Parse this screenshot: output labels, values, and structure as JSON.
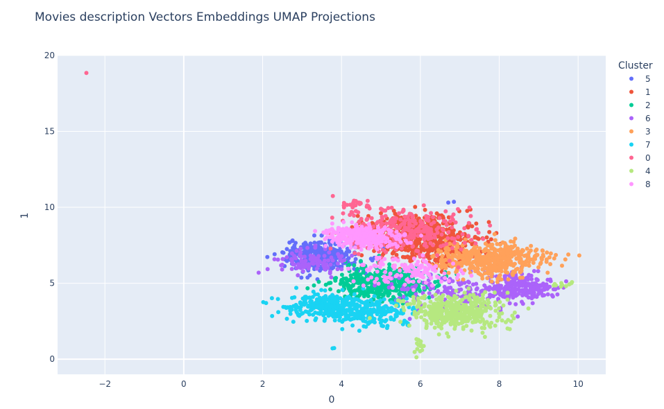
{
  "chart_data": {
    "type": "scatter",
    "title": "Movies description Vectors Embeddings UMAP Projections",
    "xlabel": "0",
    "ylabel": "1",
    "xlim": [
      -3.2,
      10.7
    ],
    "ylim": [
      -1.0,
      20.0
    ],
    "x_ticks": [
      -2,
      0,
      2,
      4,
      6,
      8,
      10
    ],
    "y_ticks": [
      0,
      5,
      10,
      15,
      20
    ],
    "grid": true,
    "legend_title": "Cluster",
    "legend_position": "right",
    "series": [
      {
        "name": "5",
        "color": "#636efa",
        "clusters": [
          {
            "cx": 3.5,
            "cy": 6.8,
            "sx": 0.45,
            "sy": 0.5,
            "n": 350
          },
          {
            "cx": 6.8,
            "cy": 10.3,
            "sx": 0.05,
            "sy": 0.05,
            "n": 2
          }
        ]
      },
      {
        "name": "1",
        "color": "#EF553B",
        "clusters": [
          {
            "cx": 6.2,
            "cy": 7.8,
            "sx": 0.7,
            "sy": 0.8,
            "n": 450
          },
          {
            "cx": 5.6,
            "cy": 8.8,
            "sx": 0.5,
            "sy": 0.4,
            "n": 120
          }
        ]
      },
      {
        "name": "2",
        "color": "#00cc96",
        "clusters": [
          {
            "cx": 5.1,
            "cy": 5.0,
            "sx": 0.6,
            "sy": 0.55,
            "n": 420
          }
        ]
      },
      {
        "name": "6",
        "color": "#ab63fa",
        "clusters": [
          {
            "cx": 8.6,
            "cy": 4.7,
            "sx": 0.4,
            "sy": 0.4,
            "n": 220
          },
          {
            "cx": 6.9,
            "cy": 4.5,
            "sx": 0.9,
            "sy": 0.7,
            "n": 160
          },
          {
            "cx": 3.2,
            "cy": 6.4,
            "sx": 0.5,
            "sy": 0.4,
            "n": 100
          }
        ]
      },
      {
        "name": "3",
        "color": "#FFA15A",
        "clusters": [
          {
            "cx": 7.8,
            "cy": 6.6,
            "sx": 0.65,
            "sy": 0.55,
            "n": 500
          }
        ]
      },
      {
        "name": "7",
        "color": "#19d3f3",
        "clusters": [
          {
            "cx": 3.7,
            "cy": 3.5,
            "sx": 0.5,
            "sy": 0.45,
            "n": 300
          },
          {
            "cx": 4.8,
            "cy": 2.9,
            "sx": 0.5,
            "sy": 0.45,
            "n": 150
          },
          {
            "cx": 3.8,
            "cy": 0.7,
            "sx": 0.05,
            "sy": 0.05,
            "n": 2
          }
        ]
      },
      {
        "name": "0",
        "color": "#FF6692",
        "clusters": [
          {
            "cx": 5.6,
            "cy": 8.4,
            "sx": 0.8,
            "sy": 0.8,
            "n": 300
          },
          {
            "cx": 4.4,
            "cy": 10.2,
            "sx": 0.2,
            "sy": 0.15,
            "n": 25
          },
          {
            "cx": -2.47,
            "cy": 18.85,
            "sx": 0.0,
            "sy": 0.0,
            "n": 1
          }
        ]
      },
      {
        "name": "4",
        "color": "#B6E880",
        "clusters": [
          {
            "cx": 6.9,
            "cy": 3.1,
            "sx": 0.6,
            "sy": 0.55,
            "n": 420
          },
          {
            "cx": 6.0,
            "cy": 0.8,
            "sx": 0.08,
            "sy": 0.4,
            "n": 14
          },
          {
            "cx": 9.6,
            "cy": 4.9,
            "sx": 0.2,
            "sy": 0.1,
            "n": 10
          }
        ]
      },
      {
        "name": "8",
        "color": "#FF97FF",
        "clusters": [
          {
            "cx": 4.5,
            "cy": 8.1,
            "sx": 0.45,
            "sy": 0.35,
            "n": 320
          },
          {
            "cx": 5.7,
            "cy": 5.7,
            "sx": 0.7,
            "sy": 0.5,
            "n": 120
          }
        ]
      }
    ]
  }
}
